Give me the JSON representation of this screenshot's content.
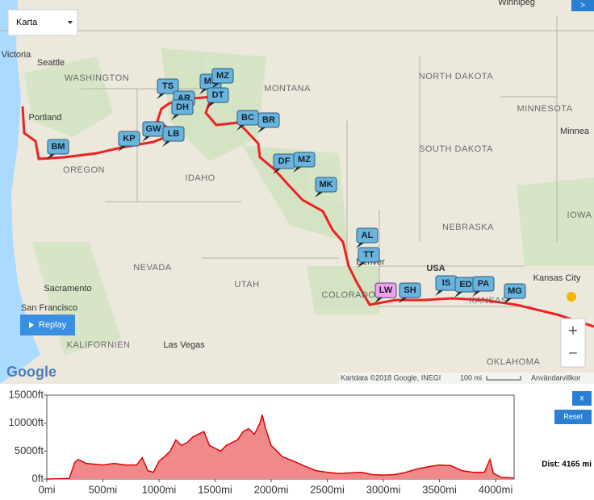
{
  "map": {
    "map_type": "Karta",
    "labels": [
      "Victoria",
      "Seattle",
      "WASHINGTON",
      "Portland",
      "OREGON",
      "IDAHO",
      "MONTANA",
      "NORTH DAKOTA",
      "MINNESOTA",
      "Minnea",
      "SOUTH DAKOTA",
      "IOWA",
      "NEBRASKA",
      "USA",
      "Denver",
      "COLORADO",
      "Kansas City",
      "KANSAS",
      "NEVADA",
      "UTAH",
      "Sacramento",
      "San Francisco",
      "KALIFORNIEN",
      "Las Vegas",
      "OKLAHOMA",
      "Winnipeg"
    ],
    "markers": [
      "BM",
      "KP",
      "GW",
      "LB",
      "TS",
      "AR",
      "DH",
      "MS",
      "MZ",
      "DT",
      "BC",
      "BR",
      "DF",
      "MZ",
      "MK",
      "AL",
      "TT",
      "LW",
      "SH",
      "IS",
      "ED",
      "PA",
      "MG"
    ],
    "replay": "Replay",
    "attribution": "Kartdata ©2018 Google, INEGI",
    "scale": "100 mi",
    "terms": "Användarvillkor",
    "google": "Google",
    "zoom_in": "+",
    "zoom_out": "−",
    "expand": ">"
  },
  "elevation_chart": {
    "type": "area",
    "color": "#f08a8a",
    "line_color": "#e00000",
    "x": [
      0,
      200,
      250,
      280,
      350,
      500,
      600,
      700,
      800,
      850,
      900,
      950,
      1000,
      1050,
      1100,
      1150,
      1200,
      1250,
      1300,
      1350,
      1400,
      1450,
      1500,
      1550,
      1600,
      1700,
      1750,
      1800,
      1850,
      1900,
      1920,
      1950,
      2000,
      2050,
      2100,
      2200,
      2300,
      2400,
      2500,
      2600,
      2700,
      2800,
      2900,
      3000,
      3100,
      3200,
      3300,
      3400,
      3500,
      3600,
      3700,
      3800,
      3900,
      3950,
      3980,
      4050,
      4165
    ],
    "values": [
      0,
      100,
      3000,
      3500,
      2800,
      2500,
      2800,
      2500,
      2500,
      3800,
      1500,
      1200,
      3200,
      4000,
      5000,
      7000,
      6000,
      6500,
      7500,
      8000,
      8500,
      6000,
      5500,
      5000,
      6000,
      7000,
      8500,
      9000,
      8000,
      10000,
      11500,
      9000,
      6000,
      5000,
      4000,
      3200,
      2300,
      1500,
      1200,
      1000,
      1100,
      1200,
      800,
      700,
      800,
      1200,
      1800,
      2200,
      2500,
      2400,
      1500,
      1200,
      1200,
      3500,
      1000,
      300,
      200
    ],
    "xlim": [
      0,
      4165
    ],
    "ylim": [
      0,
      15000
    ],
    "xticks": [
      {
        "value": 0,
        "label": "0mi"
      },
      {
        "value": 500,
        "label": "500mi"
      },
      {
        "value": 1000,
        "label": "1000mi"
      },
      {
        "value": 1500,
        "label": "1500mi"
      },
      {
        "value": 2000,
        "label": "2000mi"
      },
      {
        "value": 2500,
        "label": "2500mi"
      },
      {
        "value": 3000,
        "label": "3000mi"
      },
      {
        "value": 3500,
        "label": "3500mi"
      },
      {
        "value": 4000,
        "label": "4000mi"
      }
    ],
    "yticks": [
      {
        "value": 0,
        "label": "0ft"
      },
      {
        "value": 5000,
        "label": "5000ft"
      },
      {
        "value": 10000,
        "label": "10000ft"
      },
      {
        "value": 15000,
        "label": "15000ft"
      }
    ]
  },
  "close": "x",
  "reset": "Reset",
  "distance": "Dist: 4165 mi"
}
